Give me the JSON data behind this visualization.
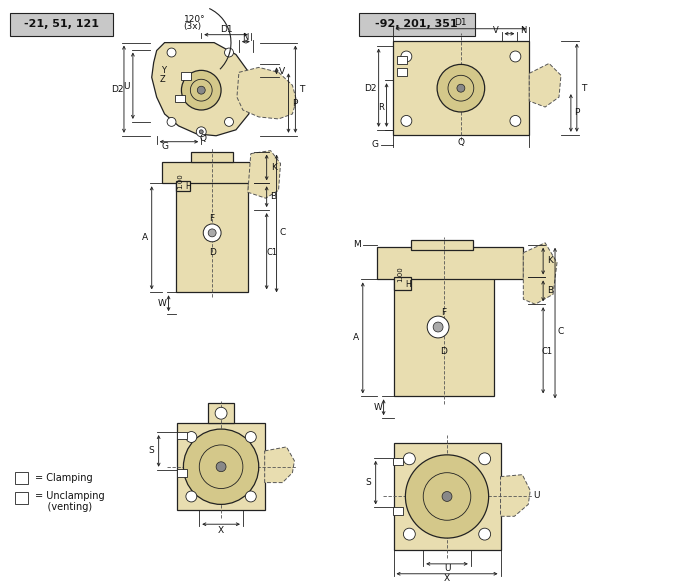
{
  "title_left": "-21, 51, 121",
  "title_right": "-92, 201, 351",
  "title_bg": "#c8c8c8",
  "body_fill": "#e8ddb0",
  "line_color": "#222222",
  "dashed_color": "#555555",
  "text_color": "#111111",
  "legend_A": "= Clamping",
  "legend_B": "= Unclamping",
  "legend_B2": "    (venting)",
  "bg_color": "#ffffff"
}
